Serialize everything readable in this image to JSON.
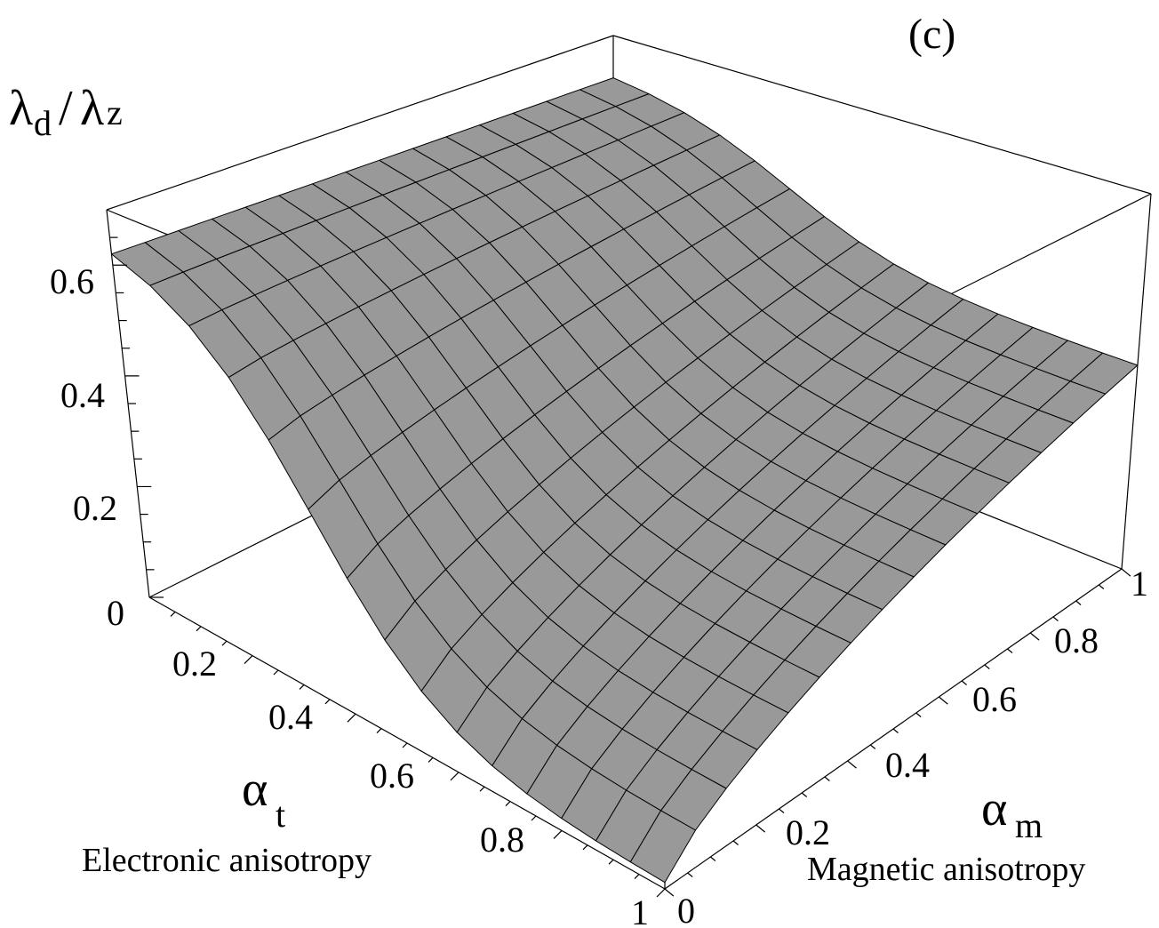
{
  "panel_label": "(c)",
  "chart_data": {
    "type": "surface3d",
    "title": "",
    "zlabel": {
      "symbol_main": "λ",
      "sub1": "d",
      "slash": "/",
      "symbol_denom": "λ",
      "sub2": "z"
    },
    "xaxis": {
      "symbol": "α",
      "sub": "t",
      "description": "Electronic anisotropy",
      "range": [
        0,
        1
      ],
      "ticks": [
        "0.2",
        "0.4",
        "0.6",
        "0.8",
        "1"
      ]
    },
    "yaxis": {
      "symbol": "α",
      "sub": "m",
      "description": "Magnetic anisotropy",
      "range": [
        0,
        1
      ],
      "ticks": [
        "0",
        "0.2",
        "0.4",
        "0.6",
        "0.8",
        "1"
      ]
    },
    "zaxis": {
      "range": [
        0,
        0.7
      ],
      "ticks": [
        "0",
        "0.2",
        "0.4",
        "0.6"
      ]
    },
    "surface_color": "#999999",
    "grid_lines": 15,
    "corner_values": {
      "at0_am0": 0.62,
      "at0_am1": 0.61,
      "at1_am0": 0.01,
      "at1_am1": 0.38
    }
  }
}
